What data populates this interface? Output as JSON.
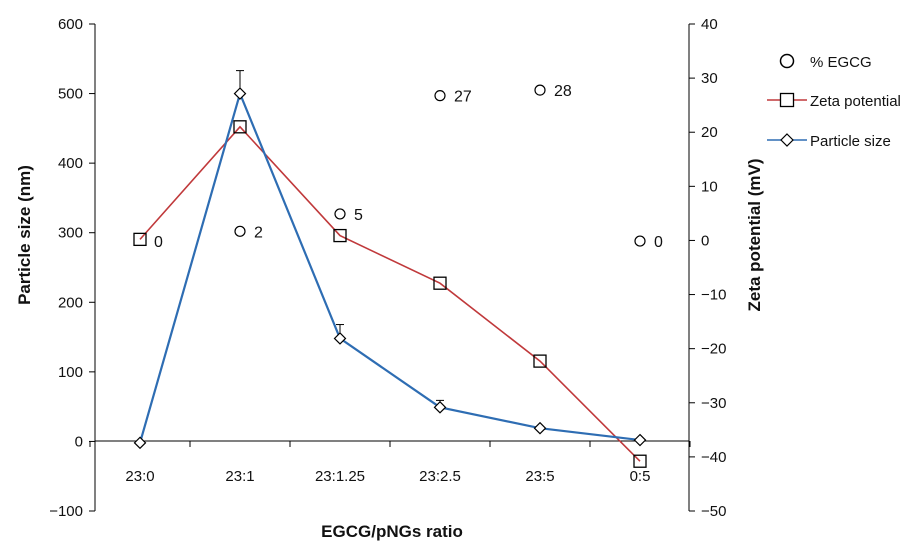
{
  "chart_data": {
    "type": "line",
    "categories": [
      "23:0",
      "23:1",
      "23:1.25",
      "23:2.5",
      "23:5",
      "0:5"
    ],
    "xlabel": "EGCG/pNGs ratio",
    "ylabel": "Particle size (nm)",
    "y2label": "Zeta potential (mV)",
    "ylim": [
      -100,
      600
    ],
    "y2lim": [
      -50,
      40
    ],
    "yticks": [
      "600",
      "500",
      "400",
      "300",
      "200",
      "100",
      "0",
      "−100"
    ],
    "y2ticks": [
      "40",
      "30",
      "20",
      "10",
      "0",
      "−10",
      "−20",
      "−30",
      "−40",
      "−50"
    ],
    "grid": false,
    "legend_position": "top-right",
    "series": [
      {
        "name": "% EGCG",
        "axis": "left",
        "marker": "circle",
        "line": false,
        "color": "#000000",
        "values": [
          null,
          302,
          327,
          497,
          505,
          288
        ],
        "data_labels": [
          "0",
          "2",
          "5",
          "27",
          "28",
          "0"
        ]
      },
      {
        "name": "Zeta potential",
        "axis": "right",
        "marker": "square",
        "line": true,
        "color": "#c0393b",
        "values": [
          0.2,
          21,
          0.9,
          -7.9,
          -22.3,
          -40.8
        ]
      },
      {
        "name": "Particle size",
        "axis": "left",
        "marker": "diamond",
        "line": true,
        "color": "#2e6db3",
        "values": [
          -2,
          500,
          148,
          49,
          19,
          2
        ],
        "error_upper": [
          0,
          33,
          20,
          10,
          0,
          0
        ]
      }
    ]
  }
}
